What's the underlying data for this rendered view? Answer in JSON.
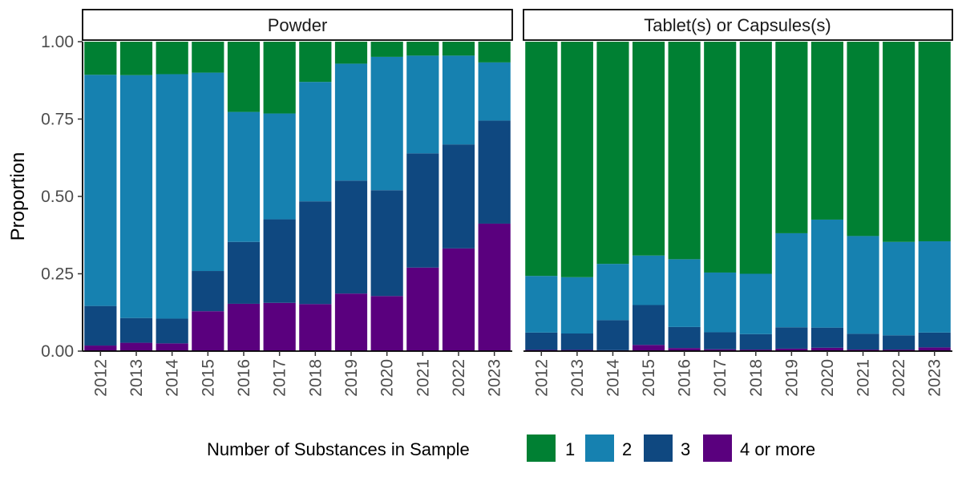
{
  "chart_data": {
    "type": "bar",
    "stacked": true,
    "ylabel": "Proportion",
    "xlabel": "",
    "ylim": [
      0,
      1
    ],
    "y_ticks": [
      "0.00",
      "0.25",
      "0.50",
      "0.75",
      "1.00"
    ],
    "y_tick_values": [
      0,
      0.25,
      0.5,
      0.75,
      1
    ],
    "categories": [
      "2012",
      "2013",
      "2014",
      "2015",
      "2016",
      "2017",
      "2018",
      "2019",
      "2020",
      "2021",
      "2022",
      "2023"
    ],
    "legend": {
      "title": "Number of Substances in Sample",
      "position": "bottom",
      "entries": [
        {
          "label": "1",
          "color": "#008033"
        },
        {
          "label": "2",
          "color": "#1681B0"
        },
        {
          "label": "3",
          "color": "#0F4880"
        },
        {
          "label": "4 or more",
          "color": "#5A007E"
        }
      ]
    },
    "panels": [
      {
        "title": "Powder",
        "series": [
          {
            "name": "1",
            "values": [
              0.107,
              0.108,
              0.105,
              0.1,
              0.227,
              0.232,
              0.13,
              0.071,
              0.049,
              0.045,
              0.045,
              0.067
            ]
          },
          {
            "name": "2",
            "values": [
              0.747,
              0.785,
              0.79,
              0.641,
              0.42,
              0.342,
              0.386,
              0.378,
              0.431,
              0.316,
              0.287,
              0.188
            ]
          },
          {
            "name": "3",
            "values": [
              0.128,
              0.08,
              0.08,
              0.13,
              0.2,
              0.27,
              0.332,
              0.365,
              0.342,
              0.369,
              0.336,
              0.333
            ]
          },
          {
            "name": "4 or more",
            "values": [
              0.018,
              0.027,
              0.025,
              0.129,
              0.153,
              0.156,
              0.152,
              0.186,
              0.178,
              0.27,
              0.332,
              0.412
            ]
          }
        ]
      },
      {
        "title": "Tablet(s) or Capsules(s)",
        "series": [
          {
            "name": "1",
            "values": [
              0.757,
              0.761,
              0.718,
              0.691,
              0.703,
              0.746,
              0.75,
              0.619,
              0.575,
              0.628,
              0.647,
              0.645
            ]
          },
          {
            "name": "2",
            "values": [
              0.183,
              0.182,
              0.182,
              0.16,
              0.219,
              0.193,
              0.195,
              0.304,
              0.349,
              0.316,
              0.302,
              0.295
            ]
          },
          {
            "name": "3",
            "values": [
              0.056,
              0.053,
              0.097,
              0.129,
              0.068,
              0.055,
              0.05,
              0.069,
              0.065,
              0.051,
              0.046,
              0.048
            ]
          },
          {
            "name": "4 or more",
            "values": [
              0.004,
              0.004,
              0.003,
              0.02,
              0.01,
              0.006,
              0.005,
              0.008,
              0.011,
              0.005,
              0.005,
              0.012
            ]
          }
        ]
      }
    ]
  }
}
